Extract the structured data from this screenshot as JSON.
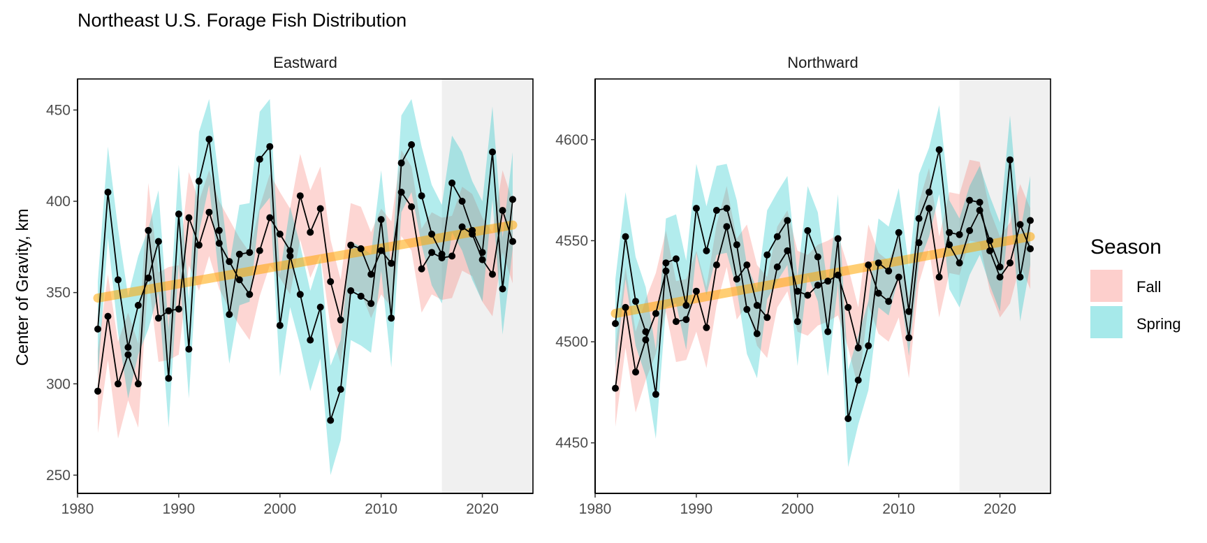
{
  "chart_data": {
    "type": "line",
    "title": "Northeast U.S. Forage Fish Distribution",
    "ylabel": "Center of Gravity, km",
    "xlabel": "",
    "xlim": [
      1980,
      2025
    ],
    "x_ticks": [
      "1980",
      "1990",
      "2000",
      "2010",
      "2020"
    ],
    "shaded_region": [
      2016,
      2025
    ],
    "legend": {
      "title": "Season",
      "position": "right",
      "entries": [
        {
          "label": "Fall",
          "color": "#F8766D"
        },
        {
          "label": "Spring",
          "color": "#00BFC4"
        }
      ]
    },
    "trend_color": "#FFA500",
    "panels": [
      {
        "strip": "Eastward",
        "ylim": [
          240,
          467
        ],
        "y_ticks": [
          250,
          300,
          350,
          400,
          450
        ],
        "y_tick_labels": [
          "250",
          "300",
          "350",
          "400",
          "450"
        ],
        "trend": [
          [
            1982,
            347
          ],
          [
            2023,
            387
          ]
        ],
        "series": [
          {
            "name": "Fall",
            "x": [
              1982,
              1983,
              1984,
              1985,
              1986,
              1987,
              1988,
              1989,
              1990,
              1991,
              1992,
              1993,
              1994,
              1995,
              1996,
              1997,
              1998,
              1999,
              2000,
              2001,
              2002,
              2003,
              2004,
              2005,
              2006,
              2007,
              2008,
              2009,
              2010,
              2011,
              2012,
              2013,
              2014,
              2015,
              2016,
              2017,
              2018,
              2019,
              2020,
              2021,
              2022,
              2023
            ],
            "y": [
              296,
              337,
              300,
              316,
              300,
              384,
              336,
              340,
              341,
              391,
              376,
              394,
              377,
              367,
              357,
              349,
              373,
              391,
              382,
              373,
              403,
              383,
              396,
              356,
              335,
              376,
              374,
              360,
              373,
              366,
              405,
              397,
              363,
              372,
              369,
              370,
              386,
              382,
              368,
              360,
              395,
              378
            ],
            "lower": [
              273,
              313,
              270,
              291,
              276,
              358,
              312,
              313,
              316,
              365,
              351,
              370,
              352,
              341,
              332,
              324,
              348,
              365,
              358,
              349,
              379,
              358,
              371,
              331,
              311,
              351,
              350,
              336,
              349,
              342,
              381,
              373,
              339,
              349,
              346,
              347,
              362,
              359,
              345,
              337,
              372,
              355
            ],
            "upper": [
              318,
              360,
              323,
              339,
              322,
              410,
              361,
              364,
              365,
              416,
              400,
              417,
              400,
              390,
              380,
              372,
              397,
              415,
              405,
              396,
              426,
              406,
              419,
              379,
              357,
              399,
              397,
              383,
              396,
              389,
              428,
              419,
              385,
              394,
              391,
              392,
              408,
              404,
              391,
              383,
              417,
              400
            ]
          },
          {
            "name": "Spring",
            "x": [
              1982,
              1983,
              1984,
              1985,
              1986,
              1987,
              1988,
              1989,
              1990,
              1991,
              1992,
              1993,
              1994,
              1995,
              1996,
              1997,
              1998,
              1999,
              2000,
              2001,
              2002,
              2003,
              2004,
              2005,
              2006,
              2007,
              2008,
              2009,
              2010,
              2011,
              2012,
              2013,
              2014,
              2015,
              2016,
              2017,
              2018,
              2019,
              2020,
              2021,
              2022,
              2023
            ],
            "y": [
              330,
              405,
              357,
              320,
              343,
              358,
              378,
              303,
              393,
              319,
              411,
              434,
              384,
              338,
              371,
              372,
              423,
              430,
              332,
              370,
              349,
              324,
              342,
              280,
              297,
              351,
              348,
              344,
              390,
              336,
              421,
              431,
              403,
              382,
              371,
              410,
              400,
              384,
              372,
              427,
              352,
              401
            ],
            "lower": [
              303,
              380,
              328,
              292,
              316,
              330,
              350,
              276,
              366,
              292,
              383,
              409,
              357,
              311,
              343,
              345,
              395,
              402,
              304,
              342,
              321,
              296,
              314,
              250,
              269,
              324,
              321,
              317,
              362,
              309,
              394,
              405,
              376,
              354,
              344,
              383,
              373,
              357,
              345,
              401,
              327,
              374
            ],
            "upper": [
              356,
              430,
              385,
              348,
              370,
              385,
              406,
              330,
              420,
              346,
              438,
              456,
              411,
              365,
              398,
              399,
              449,
              456,
              360,
              397,
              376,
              351,
              369,
              310,
              324,
              378,
              375,
              371,
              417,
              363,
              447,
              456,
              430,
              409,
              398,
              436,
              427,
              411,
              400,
              452,
              380,
              427
            ]
          }
        ]
      },
      {
        "strip": "Northward",
        "ylim": [
          4425,
          4630
        ],
        "y_ticks": [
          4450,
          4500,
          4550,
          4600
        ],
        "y_tick_labels": [
          "4450",
          "4500",
          "4550",
          "4600"
        ],
        "trend": [
          [
            1982,
            4514
          ],
          [
            2023,
            4552
          ]
        ],
        "series": [
          {
            "name": "Fall",
            "x": [
              1982,
              1983,
              1984,
              1985,
              1986,
              1987,
              1988,
              1989,
              1990,
              1991,
              1992,
              1993,
              1994,
              1995,
              1996,
              1997,
              1998,
              1999,
              2000,
              2001,
              2002,
              2003,
              2004,
              2005,
              2006,
              2007,
              2008,
              2009,
              2010,
              2011,
              2012,
              2013,
              2014,
              2015,
              2016,
              2017,
              2018,
              2019,
              2020,
              2021,
              2022,
              2023
            ],
            "y": [
              4477,
              4517,
              4485,
              4501,
              4514,
              4535,
              4510,
              4511,
              4525,
              4507,
              4538,
              4557,
              4531,
              4538,
              4518,
              4512,
              4537,
              4545,
              4525,
              4523,
              4528,
              4530,
              4533,
              4517,
              4497,
              4538,
              4524,
              4520,
              4532,
              4502,
              4549,
              4566,
              4532,
              4554,
              4553,
              4570,
              4569,
              4545,
              4532,
              4539,
              4558,
              4546
            ],
            "lower": [
              4458,
              4497,
              4465,
              4481,
              4494,
              4515,
              4490,
              4491,
              4505,
              4487,
              4518,
              4537,
              4511,
              4518,
              4498,
              4492,
              4517,
              4525,
              4505,
              4503,
              4508,
              4510,
              4513,
              4497,
              4477,
              4518,
              4504,
              4500,
              4512,
              4482,
              4529,
              4546,
              4512,
              4534,
              4533,
              4550,
              4549,
              4525,
              4512,
              4519,
              4538,
              4526
            ],
            "upper": [
              4497,
              4537,
              4505,
              4521,
              4534,
              4555,
              4530,
              4531,
              4545,
              4527,
              4558,
              4577,
              4551,
              4558,
              4538,
              4532,
              4557,
              4565,
              4545,
              4543,
              4548,
              4550,
              4553,
              4537,
              4517,
              4558,
              4544,
              4540,
              4552,
              4522,
              4569,
              4586,
              4552,
              4574,
              4573,
              4590,
              4589,
              4565,
              4552,
              4559,
              4578,
              4566
            ]
          },
          {
            "name": "Spring",
            "x": [
              1982,
              1983,
              1984,
              1985,
              1986,
              1987,
              1988,
              1989,
              1990,
              1991,
              1992,
              1993,
              1994,
              1995,
              1996,
              1997,
              1998,
              1999,
              2000,
              2001,
              2002,
              2003,
              2004,
              2005,
              2006,
              2007,
              2008,
              2009,
              2010,
              2011,
              2012,
              2013,
              2014,
              2015,
              2016,
              2017,
              2018,
              2019,
              2020,
              2021,
              2022,
              2023
            ],
            "y": [
              4509,
              4552,
              4520,
              4505,
              4474,
              4539,
              4541,
              4518,
              4566,
              4545,
              4565,
              4566,
              4548,
              4516,
              4504,
              4543,
              4552,
              4560,
              4510,
              4555,
              4542,
              4505,
              4551,
              4462,
              4481,
              4498,
              4539,
              4535,
              4554,
              4515,
              4561,
              4574,
              4595,
              4548,
              4539,
              4555,
              4565,
              4550,
              4537,
              4590,
              4532,
              4560
            ],
            "lower": [
              4487,
              4531,
              4498,
              4483,
              4452,
              4517,
              4519,
              4496,
              4544,
              4523,
              4543,
              4544,
              4526,
              4494,
              4482,
              4521,
              4530,
              4538,
              4488,
              4533,
              4520,
              4483,
              4529,
              4438,
              4459,
              4476,
              4517,
              4513,
              4532,
              4493,
              4539,
              4552,
              4573,
              4526,
              4517,
              4533,
              4543,
              4528,
              4515,
              4568,
              4510,
              4538
            ],
            "upper": [
              4531,
              4574,
              4542,
              4527,
              4496,
              4561,
              4563,
              4540,
              4588,
              4567,
              4587,
              4588,
              4570,
              4538,
              4526,
              4565,
              4574,
              4582,
              4532,
              4577,
              4564,
              4527,
              4573,
              4486,
              4503,
              4520,
              4561,
              4557,
              4576,
              4537,
              4583,
              4596,
              4617,
              4570,
              4561,
              4577,
              4587,
              4572,
              4559,
              4612,
              4554,
              4582
            ]
          }
        ]
      }
    ]
  }
}
